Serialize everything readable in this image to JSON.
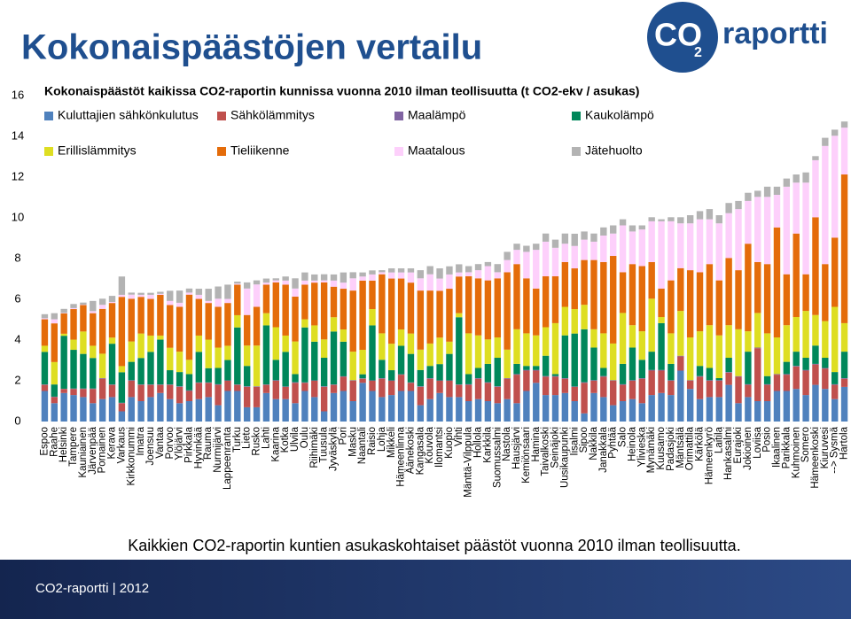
{
  "header": {
    "title": "Kokonaispäästöjen vertailu",
    "logo": {
      "mark": "CO",
      "sub": "2",
      "word": "raportti"
    }
  },
  "chart_data": {
    "type": "stacked_bar",
    "title": "Kokonaispäästöt kaikissa CO2-raportin kunnissa vuonna 2010 ilman teollisuutta (t CO2-ekv / asukas)",
    "categories": [
      "Espoo",
      "Raahe",
      "Helsinki",
      "Tampere",
      "Kauniainen",
      "Järvenpää",
      "Pornainen",
      "Kerava",
      "Varkaus",
      "Kirkkonummi",
      "Imatra",
      "Joensuu",
      "Vantaa",
      "Porvoo",
      "Ylöjärvi",
      "Pirkkala",
      "Hyvinkää",
      "Rauma",
      "Nurmijärvi",
      "Lappeenranta",
      "Turku",
      "Lieto",
      "Rusko",
      "Lahti",
      "Kaarina",
      "Kotka",
      "Ulvila",
      "Oulu",
      "Riihimäki",
      "Tuusula",
      "Jyväskylä",
      "Pori",
      "Masku",
      "Naantali",
      "Raisio",
      "Lohja",
      "Mikkeli",
      "Hämeenlinna",
      "Äänekoski",
      "Kangasala",
      "Kouvola",
      "Ilomantsi",
      "Kuopio",
      "Vihti",
      "Mänttä-Vilppula",
      "Hollola",
      "Karkkila",
      "Suomussalmi",
      "Nastola",
      "Hausjärvi",
      "Kemiönsaari",
      "Hamina",
      "Taivalkoski",
      "Seinäjoki",
      "Uusikaupunki",
      "Iisalmi",
      "Sipoo",
      "Nakkila",
      "Janakkala",
      "Pyhtää",
      "Salo",
      "Heinola",
      "Ylivieska",
      "Mynämäki",
      "Kuusamo",
      "Padasjoki",
      "Mäntsälä",
      "Orimattila",
      "Kärkölä",
      "Hämeenkyrö",
      "Laitila",
      "Hankasalmi",
      "Eurajoki",
      "Jokioinen",
      "Loviisa",
      "Posio",
      "Ikaalinen",
      "Parikkala",
      "Kuhmoinen",
      "Somero",
      "Hämeenkoski",
      "Kiuruvesi",
      "--> Sysmä",
      "Hartola"
    ],
    "series": [
      {
        "name": "Kuluttajien sähkönkulutus",
        "color": "#4f81bd",
        "values": [
          1.5,
          0.9,
          1.4,
          1.3,
          1.2,
          0.9,
          1.1,
          1.2,
          0.5,
          1.2,
          1.0,
          1.2,
          1.4,
          1.1,
          0.9,
          1.0,
          1.1,
          1.2,
          0.8,
          1.5,
          1.5,
          0.7,
          0.7,
          1.4,
          1.1,
          1.1,
          0.9,
          1.5,
          1.2,
          0.5,
          1.4,
          1.5,
          1.0,
          1.9,
          1.5,
          1.2,
          1.3,
          1.5,
          1.5,
          0.8,
          1.1,
          1.4,
          1.2,
          1.2,
          1.0,
          1.1,
          1.0,
          0.9,
          1.1,
          0.9,
          1.5,
          1.9,
          1.3,
          1.3,
          1.4,
          1.0,
          0.4,
          1.4,
          1.2,
          0.8,
          1.0,
          1.1,
          0.9,
          1.3,
          1.4,
          1.3,
          2.5,
          1.6,
          1.1,
          1.2,
          1.2,
          1.8,
          0.9,
          1.2,
          1.0,
          1.0,
          1.5,
          1.5,
          1.6,
          1.3,
          1.8,
          1.6,
          1.1,
          1.7
        ]
      },
      {
        "name": "Sähkölämmitys",
        "color": "#c0504d",
        "values": [
          0.3,
          0.3,
          0.2,
          0.3,
          0.4,
          0.7,
          1.0,
          0.6,
          0.4,
          0.8,
          0.8,
          0.6,
          0.4,
          0.7,
          0.8,
          0.5,
          0.8,
          0.7,
          1.0,
          0.5,
          0.3,
          1.0,
          1.0,
          0.4,
          0.9,
          0.6,
          1.0,
          0.4,
          0.8,
          1.2,
          0.4,
          0.7,
          1.0,
          0.2,
          0.5,
          0.9,
          0.7,
          0.8,
          0.4,
          0.9,
          1.0,
          0.6,
          0.8,
          0.6,
          0.8,
          1.0,
          0.9,
          0.8,
          1.0,
          1.4,
          1.0,
          0.6,
          0.9,
          0.9,
          0.7,
          0.7,
          1.5,
          0.6,
          1.0,
          1.2,
          0.8,
          0.9,
          1.2,
          1.2,
          1.1,
          0.7,
          0.7,
          0.4,
          1.1,
          0.8,
          0.8,
          0.6,
          1.3,
          0.6,
          2.6,
          0.8,
          0.8,
          0.8,
          1.1,
          1.2,
          1.0,
          1.0,
          0.7,
          0.4
        ]
      },
      {
        "name": "Maalämpö",
        "color": "#8064a2",
        "values": [
          0.02,
          0.02,
          0.01,
          0.02,
          0.02,
          0.02,
          0.03,
          0.02,
          0.02,
          0.03,
          0.02,
          0.02,
          0.02,
          0.02,
          0.03,
          0.03,
          0.02,
          0.02,
          0.03,
          0.02,
          0.02,
          0.03,
          0.03,
          0.02,
          0.03,
          0.02,
          0.03,
          0.02,
          0.02,
          0.03,
          0.02,
          0.02,
          0.03,
          0.02,
          0.02,
          0.03,
          0.02,
          0.02,
          0.02,
          0.03,
          0.03,
          0.02,
          0.02,
          0.02,
          0.03,
          0.03,
          0.03,
          0.03,
          0.03,
          0.03,
          0.03,
          0.03,
          0.03,
          0.03,
          0.03,
          0.02,
          0.03,
          0.03,
          0.03,
          0.03,
          0.03,
          0.03,
          0.03,
          0.03,
          0.03,
          0.03,
          0.03,
          0.03,
          0.03,
          0.03,
          0.03,
          0.03,
          0.03,
          0.03,
          0.03,
          0.03,
          0.03,
          0.03,
          0.03,
          0.03,
          0.03,
          0.03,
          0.03,
          0.03
        ]
      },
      {
        "name": "Kaukolämpö",
        "color": "#00875a",
        "values": [
          1.6,
          0.6,
          2.6,
          1.9,
          1.7,
          1.5,
          0,
          2.0,
          1.5,
          0.9,
          1.3,
          1.6,
          2.2,
          0.7,
          0.7,
          0.8,
          1.5,
          0.7,
          0.8,
          1.0,
          2.8,
          1.0,
          0,
          2.9,
          1.0,
          1.7,
          0.4,
          2.7,
          1.9,
          1.4,
          2.6,
          1.7,
          0,
          0.2,
          2.7,
          0.9,
          0.5,
          1.4,
          1.4,
          0.8,
          0.6,
          0.8,
          1.3,
          3.3,
          0.5,
          0.5,
          0.9,
          1.4,
          0,
          0.5,
          0.2,
          0.2,
          1.0,
          0.1,
          2.1,
          2.6,
          2.6,
          1.6,
          0.4,
          0,
          1.0,
          1.6,
          0.9,
          0.9,
          2.3,
          0.8,
          0,
          0,
          0.5,
          0.6,
          0.1,
          0.7,
          0,
          1.6,
          0,
          0.4,
          0,
          0.6,
          0.7,
          0.6,
          0.9,
          0.5,
          0.6,
          1.3
        ]
      },
      {
        "name": "Erillislämmitys",
        "color": "#dede22",
        "values": [
          0.3,
          1.1,
          0.1,
          0.5,
          1.1,
          0.6,
          1.2,
          0.3,
          0.3,
          1.0,
          1.2,
          0.8,
          0.2,
          1.1,
          1.0,
          0.7,
          0.8,
          1.4,
          1.0,
          0.7,
          0.6,
          1.0,
          2.0,
          0.6,
          1.6,
          0.8,
          1.6,
          0.4,
          0.8,
          0.9,
          0.7,
          0.6,
          1.4,
          1.2,
          0.8,
          1.3,
          1.3,
          0.8,
          1.0,
          1.0,
          1.1,
          1.3,
          0.6,
          0.2,
          2.0,
          1.6,
          1.2,
          1.0,
          1.4,
          1.7,
          1.6,
          1.5,
          1.4,
          2.5,
          1.4,
          1.2,
          1.2,
          0.9,
          1.7,
          1.8,
          2.5,
          1.1,
          1.4,
          2.6,
          0.3,
          1.5,
          2.2,
          2.1,
          1.7,
          2.1,
          2.1,
          1.6,
          2.3,
          1.0,
          1.7,
          2.1,
          1.8,
          1.8,
          1.7,
          2.3,
          1.5,
          1.8,
          3.2,
          1.4
        ]
      },
      {
        "name": "Tieliikenne",
        "color": "#e46c0a",
        "values": [
          1.3,
          1.9,
          1.0,
          1.5,
          1.3,
          1.6,
          2.2,
          1.7,
          3.4,
          2.1,
          1.8,
          1.8,
          2.0,
          2.1,
          2.2,
          3.2,
          1.8,
          1.8,
          2.0,
          2.1,
          1.5,
          1.5,
          1.9,
          1.4,
          2.2,
          2.5,
          2.2,
          1.7,
          2.1,
          2.8,
          1.5,
          2.0,
          3.0,
          3.4,
          1.4,
          2.9,
          3.2,
          2.5,
          2.5,
          2.9,
          2.6,
          2.3,
          2.6,
          1.8,
          2.8,
          2.8,
          2.9,
          2.9,
          3.8,
          3.2,
          2.7,
          2.3,
          2.5,
          2.3,
          2.2,
          2.0,
          2.2,
          3.4,
          3.5,
          4.3,
          2.0,
          3.0,
          3.2,
          1.8,
          1.4,
          2.6,
          2.1,
          3.3,
          2.9,
          3.0,
          2.7,
          3.3,
          2.9,
          4.3,
          2.5,
          3.4,
          5.4,
          2.5,
          4.1,
          1.8,
          4.8,
          2.8,
          3.4,
          7.3
        ]
      },
      {
        "name": "Maatalous",
        "color": "#fdd0fb",
        "values": [
          0.05,
          0.2,
          0.02,
          0.05,
          0.02,
          0.1,
          0.2,
          0.05,
          0.1,
          0.2,
          0.1,
          0.2,
          0.05,
          0.2,
          0.2,
          0.1,
          0.2,
          0.1,
          0.4,
          0.2,
          0.05,
          1.3,
          1.1,
          0.1,
          0.1,
          0.2,
          0.4,
          0.2,
          0.1,
          0.1,
          0.3,
          0.3,
          0.6,
          0.2,
          0.3,
          0.1,
          0.3,
          0.3,
          0.5,
          0.6,
          0.8,
          0.6,
          0.7,
          0.2,
          0.2,
          0.4,
          0.7,
          0.3,
          0.6,
          0.7,
          1.3,
          1.9,
          1.7,
          1.4,
          0.9,
          1.1,
          1.0,
          0.9,
          1.3,
          1.1,
          2.3,
          1.6,
          1.8,
          2.0,
          3.3,
          2.9,
          2.2,
          2.3,
          2.6,
          2.2,
          2.8,
          2.2,
          3.0,
          2.1,
          3.2,
          3.3,
          1.6,
          4.3,
          2.5,
          4.5,
          2.8,
          5.8,
          5.0,
          2.3
        ]
      },
      {
        "name": "Jätehuolto",
        "color": "#b3b3b3",
        "values": [
          0.2,
          0.3,
          0.2,
          0.2,
          0.1,
          0.5,
          0.3,
          0.3,
          0.9,
          0.1,
          0.1,
          0.1,
          0.1,
          0.5,
          0.6,
          0.2,
          0.3,
          0.6,
          0.6,
          0.7,
          0.1,
          0.3,
          0.2,
          0.2,
          0.1,
          0.2,
          0.5,
          0.4,
          0.3,
          0.3,
          0.3,
          0.5,
          0.3,
          0.2,
          0.2,
          0.1,
          0.2,
          0.2,
          0.2,
          0.4,
          0.4,
          0.5,
          0.4,
          0.4,
          0.3,
          0.3,
          0.2,
          0.4,
          0.4,
          0.3,
          0.3,
          0.3,
          0.4,
          0.4,
          0.5,
          0.6,
          0.4,
          0.4,
          0.4,
          0.4,
          0.3,
          0.3,
          0.2,
          0.2,
          0.1,
          0.2,
          0.3,
          0.4,
          0.4,
          0.5,
          0.4,
          0.5,
          0.4,
          0.4,
          0.3,
          0.5,
          0.4,
          0.4,
          0.4,
          0.5,
          0.2,
          0.4,
          0.3,
          0.3
        ]
      }
    ],
    "ylim": [
      0,
      16
    ],
    "yticks": [
      0,
      2,
      4,
      6,
      8,
      10,
      12,
      14,
      16
    ],
    "grid": false
  },
  "caption": "Kaikkien CO2-raportin kuntien asukaskohtaiset päästöt vuonna 2010 ilman teollisuutta.",
  "footer": "CO2-raportti | 2012"
}
